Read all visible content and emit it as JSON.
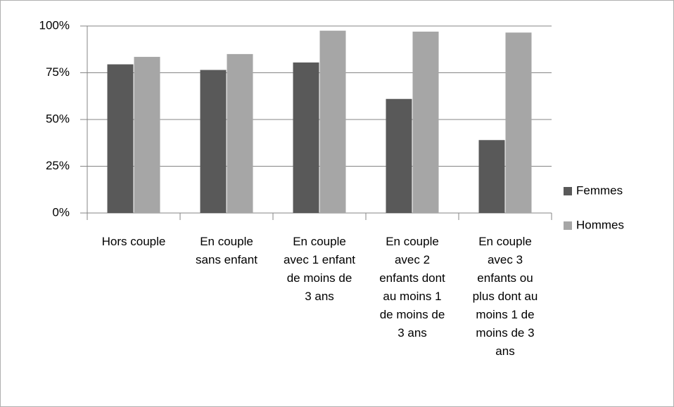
{
  "chart_data": {
    "type": "bar",
    "categories": [
      "Hors couple",
      "En couple sans enfant",
      "En couple avec 1 enfant de moins de 3 ans",
      "En couple avec 2 enfants dont au moins 1 de moins de 3 ans",
      "En couple avec 3 enfants ou plus dont au moins 1 de moins de 3 ans"
    ],
    "series": [
      {
        "name": "Femmes",
        "color": "#595959",
        "values": [
          79.5,
          76.5,
          80.5,
          61,
          39
        ]
      },
      {
        "name": "Hommes",
        "color": "#a6a6a6",
        "values": [
          83.5,
          85,
          97.5,
          97,
          96.5
        ]
      }
    ],
    "ylim": [
      0,
      100
    ],
    "yticks": [
      {
        "value": 0,
        "label": "0%"
      },
      {
        "value": 25,
        "label": "25%"
      },
      {
        "value": 50,
        "label": "50%"
      },
      {
        "value": 75,
        "label": "75%"
      },
      {
        "value": 100,
        "label": "100%"
      }
    ],
    "grid": true,
    "legend": "right"
  }
}
